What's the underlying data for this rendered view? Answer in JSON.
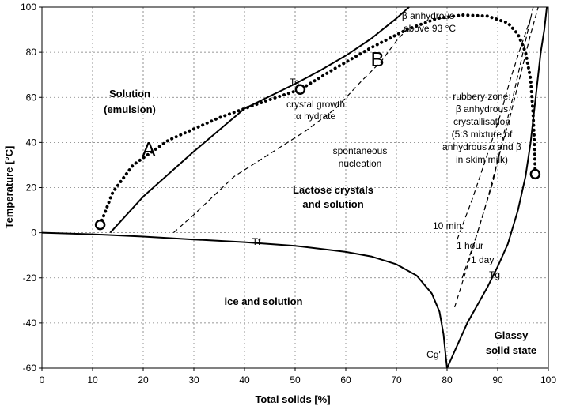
{
  "chart_data": {
    "type": "line",
    "xlabel": "Total solids [%]",
    "ylabel": "Temperature [°C]",
    "xlim": [
      0,
      100
    ],
    "ylim": [
      -60,
      100
    ],
    "x_ticks": [
      0,
      10,
      20,
      30,
      40,
      50,
      60,
      70,
      80,
      90,
      100
    ],
    "y_ticks": [
      -60,
      -40,
      -20,
      0,
      20,
      40,
      60,
      80,
      100
    ],
    "grid": true,
    "curves": [
      {
        "key": "tf",
        "label": "Tf",
        "style": "solid",
        "x": [
          0,
          10,
          20,
          30,
          40,
          50,
          60,
          65,
          70,
          74,
          77,
          78.5,
          79.3,
          79.7,
          80
        ],
        "y": [
          0,
          -0.7,
          -1.7,
          -3,
          -4.2,
          -5.8,
          -8.5,
          -10.5,
          -14,
          -19,
          -27,
          -35,
          -45,
          -54,
          -60
        ]
      },
      {
        "key": "ts",
        "label": "Ts",
        "style": "solid",
        "x": [
          13.5,
          20,
          30,
          40,
          50,
          55,
          60,
          65,
          70,
          72.5
        ],
        "y": [
          0,
          16,
          36,
          55,
          66,
          72,
          78.5,
          86,
          95,
          100
        ]
      },
      {
        "key": "tg",
        "label": "Tg",
        "style": "solid",
        "x": [
          80,
          84,
          88,
          90,
          92,
          94,
          95.5,
          96.5,
          97.5,
          98.5,
          99.2,
          99.7
        ],
        "y": [
          -60,
          -40,
          -24,
          -15,
          -5,
          10,
          25,
          40,
          60,
          80,
          90,
          100
        ]
      },
      {
        "key": "spont",
        "label": "spontaneous nucleation",
        "style": "dash",
        "x": [
          26,
          30,
          38,
          45,
          52,
          58,
          63,
          67,
          70,
          72
        ],
        "y": [
          0,
          8,
          25,
          35,
          45,
          55,
          67,
          76,
          85,
          90
        ]
      },
      {
        "key": "t10min",
        "label": "10 min.",
        "style": "dash",
        "x": [
          82,
          85,
          88,
          90.5,
          92.5,
          94.5,
          96.5
        ],
        "y": [
          -3,
          15,
          35,
          52,
          68,
          82,
          95
        ]
      },
      {
        "key": "t1hour",
        "label": "1 hour",
        "style": "dash",
        "x": [
          83,
          86,
          89,
          91,
          93,
          95,
          97
        ],
        "y": [
          -20,
          0,
          22,
          42,
          60,
          80,
          100
        ]
      },
      {
        "key": "t1day",
        "label": "1 day",
        "style": "dash",
        "x": [
          81.5,
          84,
          86,
          88,
          90,
          92.5,
          94.5,
          96.5,
          98
        ],
        "y": [
          -33,
          -15,
          0,
          15,
          32,
          52,
          70,
          88,
          100
        ]
      },
      {
        "key": "process",
        "label": "",
        "style": "dot",
        "x": [
          11.5,
          14,
          18,
          25,
          35,
          45,
          51,
          58,
          65,
          72,
          78,
          83,
          88,
          92,
          94,
          95.5,
          96.5,
          97,
          97.3,
          97.4
        ],
        "y": [
          3.5,
          18,
          30,
          41,
          51,
          59,
          63.5,
          73,
          82,
          90,
          95,
          96.5,
          96,
          93,
          88,
          80,
          68,
          52,
          38,
          26
        ]
      }
    ],
    "markers": [
      {
        "label": "",
        "x": 11.5,
        "y": 3.5
      },
      {
        "label": "",
        "x": 51,
        "y": 63.5
      },
      {
        "label": "",
        "x": 97.4,
        "y": 26
      }
    ],
    "annotations": {
      "solution_1": "Solution",
      "solution_2": "(emulsion)",
      "a": "A",
      "b": "B",
      "ts": "Ts",
      "tf": "Tf",
      "tg": "Tg",
      "cg": "Cg'",
      "crystal_growth_1": "crystal growth",
      "crystal_growth_2": "α hydrate",
      "beta_anhydrous_1": "β anhydrous",
      "beta_anhydrous_2": "above 93 °C",
      "rubbery_1": "rubbery zone:",
      "rubbery_2": "β anhydrous",
      "rubbery_3": "crystallisation",
      "rubbery_4": "(5:3 mixture of",
      "rubbery_5": "anhydrous α and β",
      "rubbery_6": "in skim milk)",
      "spontaneous_1": "spontaneous",
      "spontaneous_2": "nucleation",
      "lactose_1": "Lactose crystals",
      "lactose_2": "and solution",
      "ten_min": "10 min.",
      "one_hour": "1 hour",
      "one_day": "1 day",
      "ice": "ice and solution",
      "glassy_1": "Glassy",
      "glassy_2": "solid state"
    }
  }
}
